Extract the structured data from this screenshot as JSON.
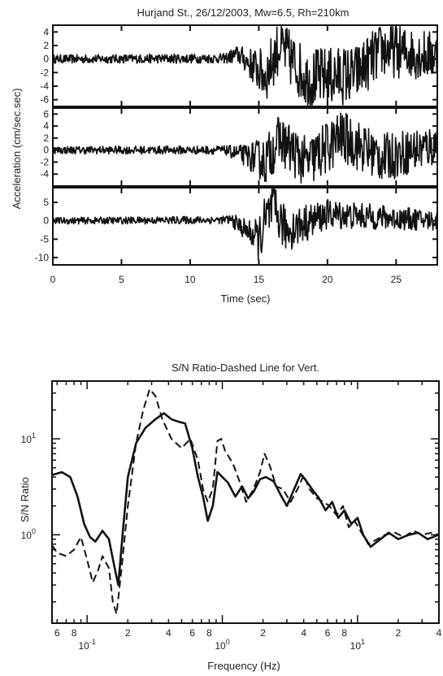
{
  "chart_data": [
    {
      "type": "line",
      "title": "Hurjand St., 26/12/2003, Mw=6.5, Rh=210km",
      "xlabel": "Time (sec)",
      "ylabel": "Acceleration (cm/sec.sec)",
      "xlim": [
        0,
        28
      ],
      "x_ticks": [
        0,
        5,
        10,
        15,
        20,
        25
      ],
      "panels": [
        {
          "ylim": [
            -7,
            5
          ],
          "y_ticks": [
            4,
            2,
            0,
            -2,
            -4,
            -6
          ],
          "noise_amplitude": 0.7,
          "envelope": [
            [
              0,
              0.7
            ],
            [
              12.5,
              0.8
            ],
            [
              14,
              2
            ],
            [
              15.5,
              4.5
            ],
            [
              20,
              5
            ],
            [
              28,
              4
            ]
          ],
          "series": [
            {
              "name": "",
              "sample_points": [
                [
                  0,
                  0
                ],
                [
                  12.5,
                  0.2
                ],
                [
                  13.5,
                  1.5
                ],
                [
                  15.5,
                  -5.5
                ],
                [
                  16.5,
                  4.5
                ],
                [
                  18.5,
                  -6.5
                ],
                [
                  22,
                  -5
                ],
                [
                  24,
                  3
                ],
                [
                  28,
                  1
                ]
              ]
            }
          ]
        },
        {
          "ylim": [
            -6,
            7
          ],
          "y_ticks": [
            6,
            4,
            2,
            0,
            -2,
            -4
          ],
          "noise_amplitude": 0.7,
          "envelope": [
            [
              0,
              0.7
            ],
            [
              12.5,
              0.8
            ],
            [
              14,
              2
            ],
            [
              15.5,
              4.5
            ],
            [
              20,
              5
            ],
            [
              28,
              4
            ]
          ],
          "series": [
            {
              "name": "",
              "sample_points": [
                [
                  0,
                  0
                ],
                [
                  12.5,
                  0
                ],
                [
                  15.5,
                  -4
                ],
                [
                  16.5,
                  4
                ],
                [
                  18.5,
                  -5
                ],
                [
                  21,
                  5
                ],
                [
                  24,
                  -3
                ],
                [
                  28,
                  2
                ]
              ]
            }
          ]
        },
        {
          "ylim": [
            -12,
            9
          ],
          "y_ticks": [
            5,
            0,
            -5,
            -10
          ],
          "noise_amplitude": 1.0,
          "envelope": [
            [
              0,
              1.0
            ],
            [
              12.5,
              1.2
            ],
            [
              14.5,
              4
            ],
            [
              15.5,
              9
            ],
            [
              16.5,
              7
            ],
            [
              20,
              4.5
            ],
            [
              28,
              3
            ]
          ],
          "series": [
            {
              "name": "",
              "sample_points": [
                [
                  0,
                  0
                ],
                [
                  13,
                  0.5
                ],
                [
                  15,
                  -11
                ],
                [
                  16,
                  8
                ],
                [
                  17,
                  -6
                ],
                [
                  20,
                  4
                ],
                [
                  28,
                  0
                ]
              ]
            }
          ]
        }
      ]
    },
    {
      "type": "line",
      "title": "S/N Ratio-Dashed Line for Vert.",
      "xlabel": "Frequency (Hz)",
      "ylabel": "S/N Ratio",
      "xscale": "log",
      "yscale": "log",
      "xlim": [
        0.055,
        40
      ],
      "ylim": [
        0.12,
        40
      ],
      "x_major_ticks": [
        {
          "value": 0.1,
          "base": "10",
          "exp": "-1"
        },
        {
          "value": 1,
          "base": "10",
          "exp": "0"
        },
        {
          "value": 10,
          "base": "10",
          "exp": "1"
        }
      ],
      "x_minor_ticks": [
        {
          "value": 0.06,
          "label": "6"
        },
        {
          "value": 0.08,
          "label": "8"
        },
        {
          "value": 0.2,
          "label": "2"
        },
        {
          "value": 0.4,
          "label": "4"
        },
        {
          "value": 0.6,
          "label": "6"
        },
        {
          "value": 0.8,
          "label": "8"
        },
        {
          "value": 2,
          "label": "2"
        },
        {
          "value": 4,
          "label": "4"
        },
        {
          "value": 6,
          "label": "6"
        },
        {
          "value": 8,
          "label": "8"
        },
        {
          "value": 20,
          "label": "2"
        },
        {
          "value": 40,
          "label": "4"
        }
      ],
      "y_major_ticks": [
        {
          "value": 1,
          "base": "10",
          "exp": "0"
        },
        {
          "value": 10,
          "base": "10",
          "exp": "1"
        }
      ],
      "series": [
        {
          "name": "",
          "style": "solid",
          "points": [
            [
              0.055,
              4.2
            ],
            [
              0.065,
              4.5
            ],
            [
              0.075,
              4.0
            ],
            [
              0.085,
              2.5
            ],
            [
              0.095,
              1.3
            ],
            [
              0.105,
              0.95
            ],
            [
              0.115,
              0.85
            ],
            [
              0.13,
              1.1
            ],
            [
              0.145,
              0.9
            ],
            [
              0.16,
              0.45
            ],
            [
              0.17,
              0.3
            ],
            [
              0.185,
              1.2
            ],
            [
              0.2,
              4.0
            ],
            [
              0.23,
              9.0
            ],
            [
              0.27,
              13.0
            ],
            [
              0.32,
              16.0
            ],
            [
              0.37,
              18.5
            ],
            [
              0.42,
              16.0
            ],
            [
              0.48,
              15.0
            ],
            [
              0.53,
              14.5
            ],
            [
              0.6,
              8.0
            ],
            [
              0.66,
              4.0
            ],
            [
              0.72,
              2.5
            ],
            [
              0.78,
              1.4
            ],
            [
              0.85,
              2.0
            ],
            [
              0.92,
              4.5
            ],
            [
              1.0,
              4.0
            ],
            [
              1.1,
              3.5
            ],
            [
              1.25,
              2.5
            ],
            [
              1.4,
              3.2
            ],
            [
              1.55,
              2.4
            ],
            [
              1.7,
              2.8
            ],
            [
              1.9,
              3.8
            ],
            [
              2.1,
              4.0
            ],
            [
              2.4,
              3.6
            ],
            [
              2.7,
              2.6
            ],
            [
              3.0,
              2.0
            ],
            [
              3.4,
              3.0
            ],
            [
              3.8,
              4.3
            ],
            [
              4.2,
              3.6
            ],
            [
              4.6,
              3.0
            ],
            [
              5.2,
              2.4
            ],
            [
              5.8,
              1.8
            ],
            [
              6.5,
              2.2
            ],
            [
              7.2,
              1.5
            ],
            [
              8.0,
              1.8
            ],
            [
              9.0,
              1.3
            ],
            [
              10.0,
              1.5
            ],
            [
              11.0,
              1.0
            ],
            [
              12.5,
              0.75
            ],
            [
              14,
              0.85
            ],
            [
              17,
              1.05
            ],
            [
              20,
              0.9
            ],
            [
              24,
              1.0
            ],
            [
              28,
              1.05
            ],
            [
              33,
              0.9
            ],
            [
              40,
              1.0
            ]
          ]
        },
        {
          "name": "",
          "style": "dashed",
          "points": [
            [
              0.055,
              0.78
            ],
            [
              0.06,
              0.65
            ],
            [
              0.07,
              0.6
            ],
            [
              0.08,
              0.7
            ],
            [
              0.09,
              0.95
            ],
            [
              0.1,
              0.55
            ],
            [
              0.11,
              0.32
            ],
            [
              0.12,
              0.42
            ],
            [
              0.13,
              0.6
            ],
            [
              0.145,
              0.45
            ],
            [
              0.155,
              0.2
            ],
            [
              0.165,
              0.15
            ],
            [
              0.18,
              0.45
            ],
            [
              0.2,
              2.0
            ],
            [
              0.23,
              9.0
            ],
            [
              0.26,
              20.0
            ],
            [
              0.29,
              33.0
            ],
            [
              0.32,
              28.0
            ],
            [
              0.36,
              16.0
            ],
            [
              0.42,
              10.0
            ],
            [
              0.5,
              8.0
            ],
            [
              0.58,
              10.0
            ],
            [
              0.66,
              6.0
            ],
            [
              0.72,
              3.0
            ],
            [
              0.78,
              2.2
            ],
            [
              0.85,
              3.0
            ],
            [
              0.92,
              9.5
            ],
            [
              0.98,
              10.0
            ],
            [
              1.05,
              7.5
            ],
            [
              1.2,
              5.5
            ],
            [
              1.35,
              3.5
            ],
            [
              1.5,
              2.2
            ],
            [
              1.7,
              3.0
            ],
            [
              1.9,
              4.5
            ],
            [
              2.05,
              7.0
            ],
            [
              2.25,
              5.2
            ],
            [
              2.5,
              3.2
            ],
            [
              2.8,
              3.0
            ],
            [
              3.2,
              2.2
            ],
            [
              3.6,
              3.0
            ],
            [
              4.0,
              4.2
            ],
            [
              4.4,
              3.0
            ],
            [
              5.0,
              2.4
            ],
            [
              5.6,
              2.2
            ],
            [
              6.2,
              2.0
            ],
            [
              7.0,
              1.6
            ],
            [
              7.8,
              2.0
            ],
            [
              8.6,
              1.2
            ],
            [
              9.5,
              1.4
            ],
            [
              10.5,
              1.1
            ],
            [
              12,
              0.8
            ],
            [
              14,
              0.9
            ],
            [
              16,
              1.0
            ],
            [
              19,
              1.05
            ],
            [
              22,
              0.95
            ],
            [
              26,
              1.1
            ],
            [
              30,
              1.0
            ],
            [
              35,
              1.05
            ],
            [
              40,
              1.0
            ]
          ]
        }
      ]
    }
  ]
}
